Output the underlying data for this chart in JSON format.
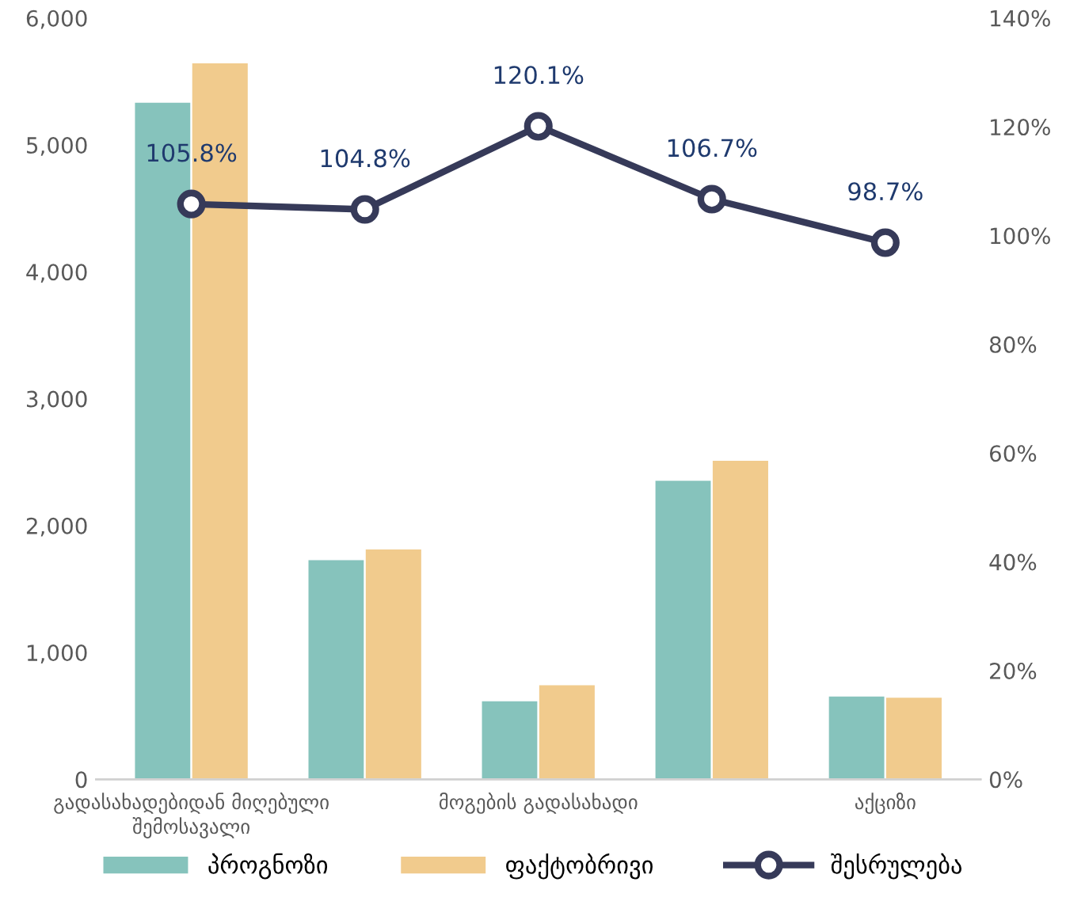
{
  "chart_data": {
    "type": "bar",
    "categories": [
      "გადასახადებიდან მიღებული\nშემოსავალი",
      null,
      "მოგების გადასახადი",
      null,
      "აქციზი"
    ],
    "series": [
      {
        "name": "პროგნოზი",
        "color": "#86c3bc",
        "values": [
          5340,
          1735,
          623,
          2360,
          660
        ]
      },
      {
        "name": "ფაქტობრივი",
        "color": "#f1cb8d",
        "values": [
          5650,
          1818,
          748,
          2518,
          651
        ]
      },
      {
        "name": "შესრულება",
        "type": "line",
        "axis": "y2",
        "color": "#363a59",
        "marker": "circle",
        "values": [
          105.8,
          104.8,
          120.1,
          106.7,
          98.7
        ],
        "value_labels": [
          "105.8%",
          "104.8%",
          "120.1%",
          "106.7%",
          "98.7%"
        ]
      }
    ],
    "ylim": [
      0,
      6000
    ],
    "yticks": [
      0,
      {
        "value": 1000,
        "label": "1,000"
      },
      {
        "value": 2000,
        "label": "2,000"
      },
      {
        "value": 3000,
        "label": "3,000"
      },
      {
        "value": 4000,
        "label": "4,000"
      },
      {
        "value": 5000,
        "label": "5,000"
      },
      {
        "value": 6000,
        "label": "6,000"
      }
    ],
    "y2lim": [
      0,
      140
    ],
    "y2ticks": [
      {
        "value": 0,
        "label": "0%"
      },
      {
        "value": 20,
        "label": "20%"
      },
      {
        "value": 40,
        "label": "40%"
      },
      {
        "value": 60,
        "label": "60%"
      },
      {
        "value": 80,
        "label": "80%"
      },
      {
        "value": 100,
        "label": "100%"
      },
      {
        "value": 120,
        "label": "120%"
      },
      {
        "value": 140,
        "label": "140%"
      }
    ],
    "grid": false,
    "legend": "bottom"
  }
}
